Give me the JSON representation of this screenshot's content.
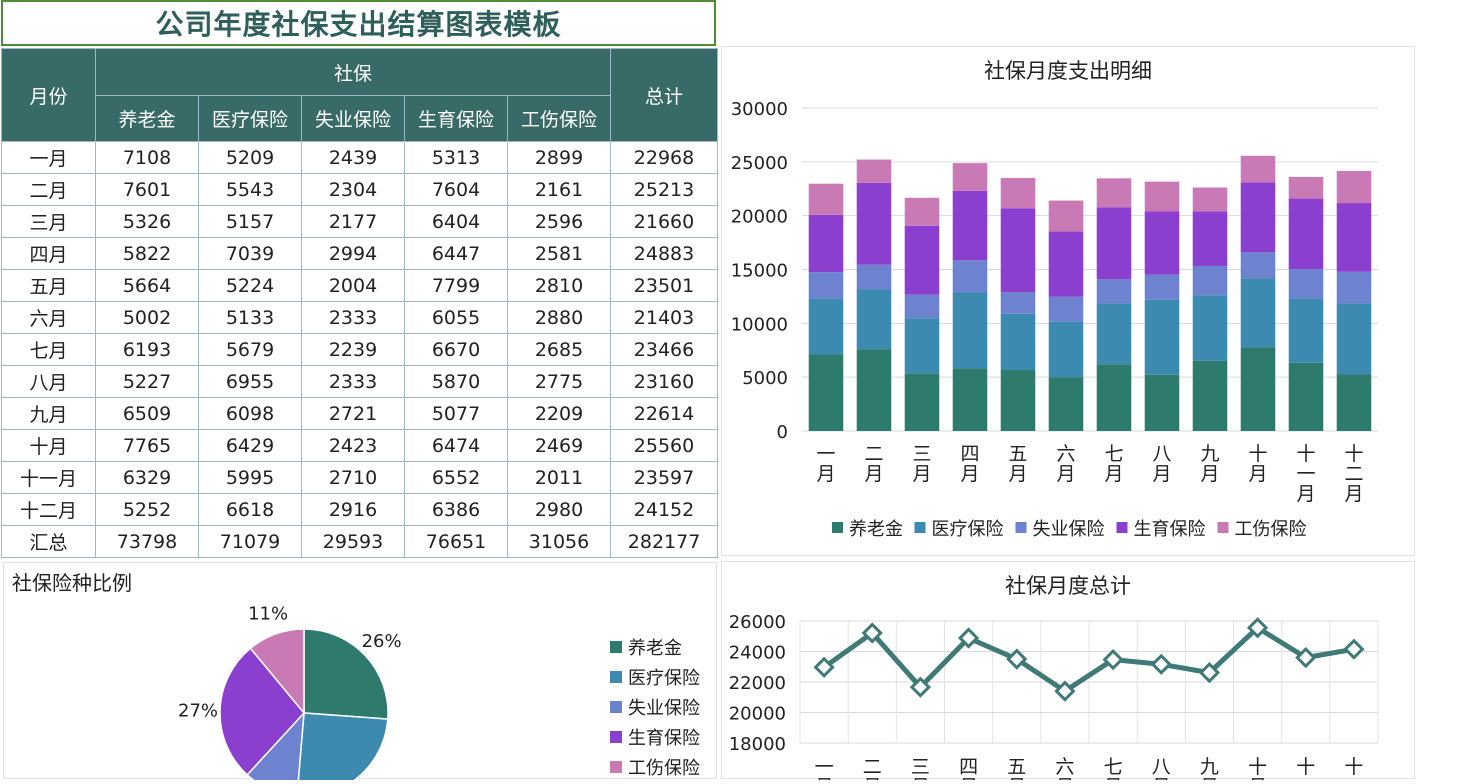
{
  "sheet": {
    "title": "公司年度社保支出结算图表模板",
    "headers": {
      "month": "月份",
      "group": "社保",
      "total": "总计",
      "items": [
        "养老金",
        "医疗保险",
        "失业保险",
        "生育保险",
        "工伤保险"
      ]
    },
    "rows": [
      {
        "month": "一月",
        "values": [
          "7108",
          "5209",
          "2439",
          "5313",
          "2899"
        ],
        "total": "22968"
      },
      {
        "month": "二月",
        "values": [
          "7601",
          "5543",
          "2304",
          "7604",
          "2161"
        ],
        "total": "25213"
      },
      {
        "month": "三月",
        "values": [
          "5326",
          "5157",
          "2177",
          "6404",
          "2596"
        ],
        "total": "21660"
      },
      {
        "month": "四月",
        "values": [
          "5822",
          "7039",
          "2994",
          "6447",
          "2581"
        ],
        "total": "24883"
      },
      {
        "month": "五月",
        "values": [
          "5664",
          "5224",
          "2004",
          "7799",
          "2810"
        ],
        "total": "23501"
      },
      {
        "month": "六月",
        "values": [
          "5002",
          "5133",
          "2333",
          "6055",
          "2880"
        ],
        "total": "21403"
      },
      {
        "month": "七月",
        "values": [
          "6193",
          "5679",
          "2239",
          "6670",
          "2685"
        ],
        "total": "23466"
      },
      {
        "month": "八月",
        "values": [
          "5227",
          "6955",
          "2333",
          "5870",
          "2775"
        ],
        "total": "23160"
      },
      {
        "month": "九月",
        "values": [
          "6509",
          "6098",
          "2721",
          "5077",
          "2209"
        ],
        "total": "22614"
      },
      {
        "month": "十月",
        "values": [
          "7765",
          "6429",
          "2423",
          "6474",
          "2469"
        ],
        "total": "25560"
      },
      {
        "month": "十一月",
        "values": [
          "6329",
          "5995",
          "2710",
          "6552",
          "2011"
        ],
        "total": "23597"
      },
      {
        "month": "十二月",
        "values": [
          "5252",
          "6618",
          "2916",
          "6386",
          "2980"
        ],
        "total": "24152"
      }
    ],
    "summary": {
      "label": "汇总",
      "values": [
        "73798",
        "71079",
        "29593",
        "76651",
        "31056"
      ],
      "total": "282177"
    }
  },
  "colors": {
    "header_bg": "#386b67",
    "title_text": "#2e5f5a",
    "title_border": "#4f8a36",
    "series": [
      "#2e7b6e",
      "#3d8ab0",
      "#6e83cf",
      "#8b3fcf",
      "#c97ab5"
    ],
    "line": "#3f7a76"
  },
  "chart_data": [
    {
      "type": "bar",
      "stacked": true,
      "title": "社保月度支出明细",
      "categories": [
        "一月",
        "二月",
        "三月",
        "四月",
        "五月",
        "六月",
        "七月",
        "八月",
        "九月",
        "十月",
        "十一月",
        "十二月"
      ],
      "series": [
        {
          "name": "养老金",
          "values": [
            7108,
            7601,
            5326,
            5822,
            5664,
            5002,
            6193,
            5227,
            6509,
            7765,
            6329,
            5252
          ]
        },
        {
          "name": "医疗保险",
          "values": [
            5209,
            5543,
            5157,
            7039,
            5224,
            5133,
            5679,
            6955,
            6098,
            6429,
            5995,
            6618
          ]
        },
        {
          "name": "失业保险",
          "values": [
            2439,
            2304,
            2177,
            2994,
            2004,
            2333,
            2239,
            2333,
            2721,
            2423,
            2710,
            2916
          ]
        },
        {
          "name": "生育保险",
          "values": [
            5313,
            7604,
            6404,
            6447,
            7799,
            6055,
            6670,
            5870,
            5077,
            6474,
            6552,
            6386
          ]
        },
        {
          "name": "工伤保险",
          "values": [
            2899,
            2161,
            2596,
            2581,
            2810,
            2880,
            2685,
            2775,
            2209,
            2469,
            2011,
            2980
          ]
        }
      ],
      "ylim": [
        0,
        30000
      ],
      "yticks": [
        0,
        5000,
        10000,
        15000,
        20000,
        25000,
        30000
      ],
      "grid": true,
      "legend": "bottom"
    },
    {
      "type": "pie",
      "title": "社保险种比例",
      "labels": [
        "养老金",
        "医疗保险",
        "失业保险",
        "生育保险",
        "工伤保险"
      ],
      "values": [
        73798,
        71079,
        29593,
        76651,
        31056
      ],
      "data_labels": [
        "26%",
        "",
        "",
        "27%",
        "11%"
      ],
      "legend": "right"
    },
    {
      "type": "line",
      "title": "社保月度总计",
      "categories": [
        "一月",
        "二月",
        "三月",
        "四月",
        "五月",
        "六月",
        "七月",
        "八月",
        "九月",
        "十月",
        "十一月",
        "十二月"
      ],
      "values": [
        22968,
        25213,
        21660,
        24883,
        23501,
        21403,
        23466,
        23160,
        22614,
        25560,
        23597,
        24152
      ],
      "ylim": [
        18000,
        26000
      ],
      "yticks": [
        18000,
        20000,
        22000,
        24000,
        26000
      ],
      "grid": true
    }
  ]
}
